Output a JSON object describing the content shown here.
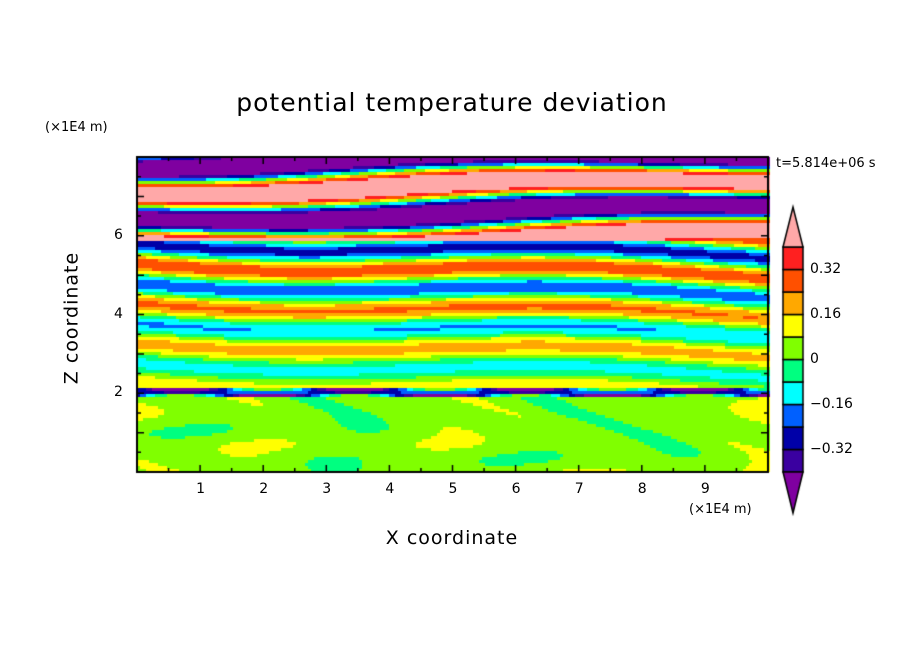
{
  "chart_data": {
    "type": "heatmap",
    "subtype": "filled contour",
    "title": "potential temperature deviation",
    "xlabel": "X coordinate",
    "ylabel": "Z coordinate",
    "x_unit": "(×1E4 m)",
    "y_unit": "(×1E4 m)",
    "annotation": "t=5.814e+06 s",
    "xlim": [
      0,
      10
    ],
    "ylim": [
      0,
      8
    ],
    "x_ticks": [
      "1",
      "2",
      "3",
      "4",
      "5",
      "6",
      "7",
      "8",
      "9"
    ],
    "y_ticks": [
      "2",
      "4",
      "6"
    ],
    "colorbar": {
      "levels": [
        -0.4,
        -0.32,
        -0.24,
        -0.16,
        -0.08,
        0,
        0.08,
        0.16,
        0.24,
        0.32,
        0.4
      ],
      "tick_labels": [
        "0.32",
        "0.16",
        "0",
        "−0.16",
        "−0.32"
      ],
      "tick_values": [
        0.32,
        0.16,
        0,
        -0.16,
        -0.32
      ],
      "colors": [
        "#7f00a0",
        "#3a00a0",
        "#0000a8",
        "#0060ff",
        "#00ffff",
        "#00ff80",
        "#80ff00",
        "#ffff00",
        "#ffa800",
        "#ff5000",
        "#ff2020",
        "#ffa8a8"
      ],
      "extend": "both"
    }
  }
}
